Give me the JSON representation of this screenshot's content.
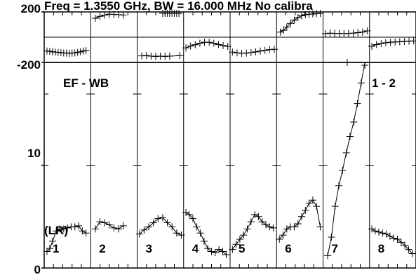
{
  "chart_data": {
    "type": "scatter",
    "header_text": "Freq = 1.3550 GHz, BW = 16.000 MHz No calibra",
    "baseline_label": "EF - WB",
    "corner_label": "1 - 2",
    "corner_label_extra": "(LR)",
    "phase_panel": {
      "y_ticks": [
        "200",
        "-200"
      ],
      "ylim": [
        -200,
        200
      ],
      "gridline": 0,
      "grid": true
    },
    "amplitude_panel": {
      "y_ticks": [
        "10",
        "0"
      ],
      "ylim": [
        0,
        20
      ],
      "grid": false
    },
    "subpanels": [
      {
        "label": "1",
        "phase_x": [
          0.06,
          0.12,
          0.18,
          0.24,
          0.3,
          0.36,
          0.42,
          0.48,
          0.54,
          0.6,
          0.66,
          0.72,
          0.78,
          0.84,
          0.9
        ],
        "phase_y": [
          -110,
          -112,
          -115,
          -118,
          -120,
          -122,
          -125,
          -126,
          -128,
          -126,
          -125,
          -120,
          -116,
          -110,
          -106
        ],
        "amp_x": [
          0.06,
          0.12,
          0.18,
          0.26,
          0.34,
          0.42,
          0.5,
          0.58,
          0.66,
          0.74,
          0.82,
          0.9
        ],
        "amp_y": [
          1.6,
          1.9,
          2.6,
          3.6,
          3.8,
          3.8,
          3.9,
          4.0,
          4.0,
          4.1,
          3.6,
          3.4
        ]
      },
      {
        "label": "2",
        "phase_x": [
          0.1,
          0.2,
          0.3,
          0.4,
          0.5,
          0.6,
          0.7
        ],
        "phase_y": [
          150,
          165,
          175,
          182,
          180,
          178,
          176
        ],
        "amp_x": [
          0.1,
          0.2,
          0.3,
          0.4,
          0.5,
          0.6,
          0.7
        ],
        "amp_y": [
          3.8,
          4.5,
          4.4,
          4.2,
          3.9,
          3.8,
          4.1
        ]
      },
      {
        "label": "3",
        "phase_x": [
          0.1,
          0.2,
          0.3,
          0.4,
          0.5,
          0.6,
          0.7,
          0.92
        ],
        "phase_y": [
          -148,
          -145,
          -150,
          -152,
          -150,
          -152,
          -150,
          -146
        ],
        "phase_outliers_x": [
          0.55,
          0.6,
          0.65,
          0.7,
          0.75,
          0.8,
          0.85,
          0.9
        ],
        "phase_outliers_y": [
          190,
          190,
          190,
          192,
          188,
          190,
          190,
          188
        ],
        "amp_x": [
          0.05,
          0.15,
          0.25,
          0.35,
          0.45,
          0.55,
          0.65,
          0.75,
          0.85,
          0.95
        ],
        "amp_y": [
          3.3,
          3.7,
          4.0,
          4.4,
          4.8,
          4.9,
          4.4,
          4.0,
          3.4,
          3.2
        ]
      },
      {
        "label": "4",
        "phase_x": [
          0.05,
          0.15,
          0.25,
          0.35,
          0.45,
          0.55,
          0.65,
          0.75,
          0.85,
          0.95
        ],
        "phase_y": [
          -85,
          -70,
          -60,
          -48,
          -40,
          -40,
          -48,
          -58,
          -66,
          -72
        ],
        "amp_x": [
          0.05,
          0.12,
          0.2,
          0.28,
          0.36,
          0.44,
          0.52,
          0.6,
          0.68,
          0.76,
          0.84,
          0.92
        ],
        "amp_y": [
          5.4,
          5.2,
          4.8,
          4.0,
          3.4,
          2.6,
          1.9,
          1.6,
          1.5,
          1.8,
          1.6,
          1.3
        ]
      },
      {
        "label": "5",
        "phase_x": [
          0.05,
          0.15,
          0.25,
          0.35,
          0.45,
          0.55,
          0.65,
          0.75,
          0.85,
          0.95
        ],
        "phase_y": [
          -118,
          -124,
          -128,
          -126,
          -122,
          -116,
          -110,
          -104,
          -98,
          -96
        ],
        "amp_x": [
          0.05,
          0.13,
          0.21,
          0.29,
          0.37,
          0.45,
          0.53,
          0.61,
          0.69,
          0.77,
          0.85,
          0.93
        ],
        "amp_y": [
          1.8,
          2.3,
          2.8,
          3.2,
          3.8,
          4.5,
          5.2,
          5.0,
          4.5,
          4.2,
          4.0,
          3.9
        ]
      },
      {
        "label": "6",
        "phase_x": [
          0.08,
          0.15,
          0.22,
          0.3,
          0.38,
          0.46,
          0.54,
          0.62,
          0.7,
          0.78,
          0.86,
          0.94
        ],
        "phase_y": [
          40,
          55,
          80,
          110,
          135,
          155,
          170,
          178,
          182,
          184,
          186,
          188
        ],
        "amp_x": [
          0.06,
          0.14,
          0.22,
          0.3,
          0.38,
          0.46,
          0.54,
          0.62,
          0.7,
          0.78,
          0.86,
          0.94
        ],
        "amp_y": [
          2.8,
          3.2,
          3.8,
          4.0,
          4.0,
          4.3,
          5.0,
          5.6,
          6.3,
          6.6,
          6.0,
          4.0
        ]
      },
      {
        "label": "7",
        "phase_x": [
          0.05,
          0.15,
          0.25,
          0.35,
          0.45,
          0.55,
          0.65,
          0.75,
          0.85,
          0.95
        ],
        "phase_y": [
          28,
          32,
          30,
          30,
          28,
          30,
          32,
          36,
          40,
          50
        ],
        "phase_outliers_x": [
          0.52
        ],
        "phase_outliers_y": [
          -200
        ],
        "amp_x": [
          0.1,
          0.18,
          0.26,
          0.34,
          0.42,
          0.5,
          0.58,
          0.66,
          0.74,
          0.82,
          0.9
        ],
        "amp_y": [
          1.2,
          3.0,
          6.0,
          8.0,
          9.5,
          11.2,
          12.8,
          14.2,
          16.0,
          18.0,
          20.0
        ]
      },
      {
        "label": "8",
        "phase_x": [
          0.05,
          0.15,
          0.25,
          0.35,
          0.45,
          0.55,
          0.65,
          0.75,
          0.85,
          0.95
        ],
        "phase_y": [
          -72,
          -58,
          -50,
          -44,
          -40,
          -38,
          -36,
          -34,
          -32,
          -30
        ],
        "amp_x": [
          0.05,
          0.12,
          0.2,
          0.28,
          0.36,
          0.44,
          0.52,
          0.6,
          0.68,
          0.76,
          0.84,
          0.92
        ],
        "amp_y": [
          3.8,
          3.6,
          3.5,
          3.4,
          3.3,
          3.1,
          2.9,
          2.8,
          2.5,
          2.2,
          1.8,
          1.4
        ]
      }
    ]
  }
}
